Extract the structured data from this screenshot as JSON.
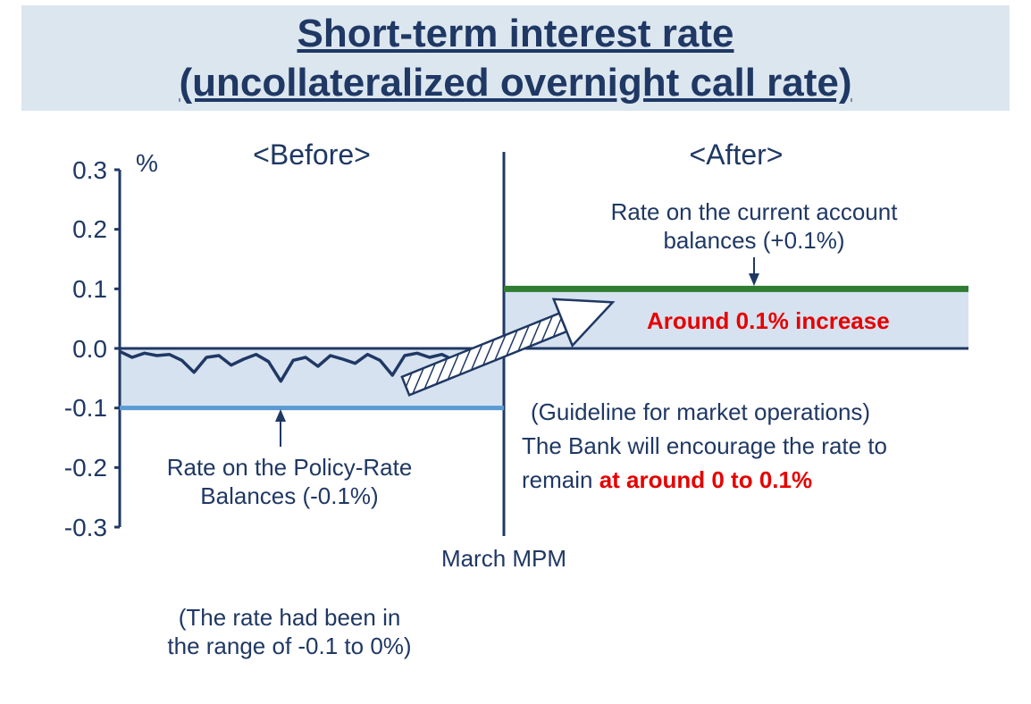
{
  "title": {
    "line1": "Short-term interest rate",
    "line2": "(uncollateralized overnight call rate)",
    "color": "#1f3864",
    "fontsize": 44,
    "band_bg": "#dce6ef"
  },
  "chart": {
    "type": "line-step",
    "y_unit_label": "%",
    "ylim": [
      -0.3,
      0.3
    ],
    "yticks": [
      -0.3,
      -0.2,
      -0.1,
      0.0,
      0.1,
      0.2,
      0.3
    ],
    "ytick_labels": [
      "-0.3",
      "-0.2",
      "-0.1",
      "0.0",
      "0.1",
      "0.2",
      "0.3"
    ],
    "axis_color": "#1f3864",
    "axis_width": 3,
    "before": {
      "header": "<Before>",
      "band": {
        "y_min": -0.1,
        "y_max": 0.0,
        "fill": "#d6e2f0",
        "opacity": 1
      },
      "floor_line": {
        "y": -0.1,
        "color": "#5b9bd5",
        "width": 5
      },
      "series": {
        "color": "#1f3864",
        "width": 3.5,
        "y_values": [
          -0.005,
          -0.015,
          -0.008,
          -0.012,
          -0.01,
          -0.02,
          -0.04,
          -0.015,
          -0.012,
          -0.028,
          -0.018,
          -0.01,
          -0.022,
          -0.055,
          -0.02,
          -0.015,
          -0.03,
          -0.012,
          -0.018,
          -0.025,
          -0.01,
          -0.02,
          -0.045,
          -0.012,
          -0.008,
          -0.015,
          -0.01,
          -0.02,
          -0.012,
          -0.008,
          -0.01,
          -0.006
        ]
      },
      "annotation": {
        "line1": "Rate on the Policy-Rate",
        "line2": "Balances (-0.1%)",
        "arrow_target_y": -0.1
      }
    },
    "axis_break_label": "March MPM",
    "after": {
      "header": "<After>",
      "band": {
        "y_min": 0.0,
        "y_max": 0.1,
        "fill": "#d6e2f0",
        "opacity": 1
      },
      "top_line": {
        "y": 0.1,
        "color": "#2e7d32",
        "width": 7
      },
      "annotation_top": {
        "line1": "Rate on the current account",
        "line2": "balances (+0.1%)",
        "arrow_target_y": 0.1
      },
      "increase_label": "Around 0.1% increase",
      "increase_color": "#e60000",
      "increase_fontsize": 26,
      "guideline_label": "(Guideline for market operations)",
      "encourage_prefix": "The Bank will encourage the rate to",
      "encourage_line2a": "remain ",
      "encourage_line2b": "at around 0 to 0.1%",
      "encourage_emph_fontsize": 32
    },
    "footnote": {
      "line1": "(The rate had been in",
      "line2": "the range of -0.1 to 0%)"
    },
    "big_arrow": {
      "stroke": "#1f3864",
      "fill": "#ffffff",
      "hatch": "#1f3864"
    },
    "background_color": "#ffffff",
    "text_color": "#1f3864",
    "label_fontsize": 26,
    "header_fontsize": 32
  }
}
